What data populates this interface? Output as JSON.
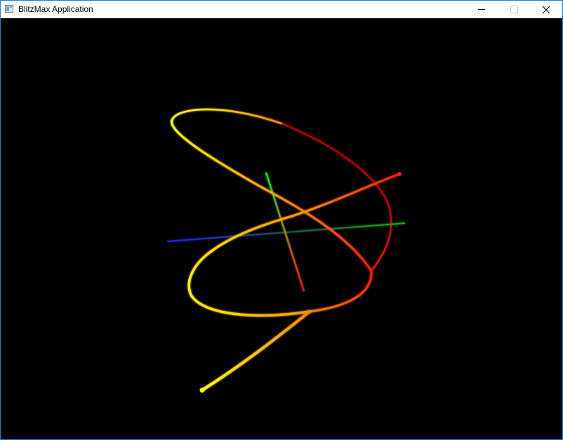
{
  "window": {
    "title": "BlitzMax Application",
    "icon": "application-icon"
  },
  "controls": {
    "minimize": "minimize-icon",
    "maximize": "maximize-icon",
    "close": "close-icon"
  },
  "scene": {
    "background": "#000000",
    "axis_colors": {
      "x": "#ff0000",
      "y": "#00c800",
      "z": "#2020ff"
    },
    "curve_colors": {
      "near": "#ffff00",
      "mid": "#ff9900",
      "far": "#ff0000"
    }
  }
}
